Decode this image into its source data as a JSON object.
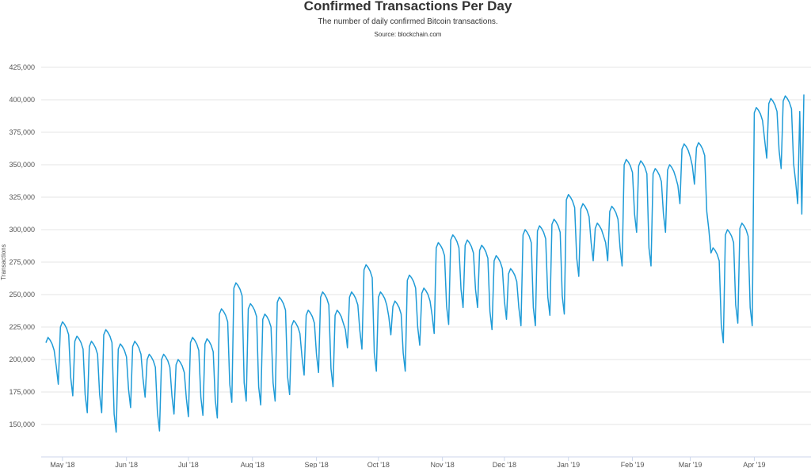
{
  "chart_data": {
    "type": "line",
    "title": "Confirmed Transactions Per Day",
    "subtitle": "The number of daily confirmed Bitcoin transactions.",
    "source": "Source: blockchain.com",
    "xlabel": "",
    "ylabel": "Transactions",
    "ylim": [
      125000,
      425000
    ],
    "grid": true,
    "line_color": "#1f9bd7",
    "start_date": "2018-04-23",
    "y_ticks": [
      {
        "value": 150000,
        "label": "150,000"
      },
      {
        "value": 175000,
        "label": "175,000"
      },
      {
        "value": 200000,
        "label": "200,000"
      },
      {
        "value": 225000,
        "label": "225,000"
      },
      {
        "value": 250000,
        "label": "250,000"
      },
      {
        "value": 275000,
        "label": "275,000"
      },
      {
        "value": 300000,
        "label": "300,000"
      },
      {
        "value": 325000,
        "label": "325,000"
      },
      {
        "value": 350000,
        "label": "350,000"
      },
      {
        "value": 375000,
        "label": "375,000"
      },
      {
        "value": 400000,
        "label": "400,000"
      },
      {
        "value": 425000,
        "label": "425,000"
      }
    ],
    "x_ticks": [
      {
        "day": 8,
        "label": "May '18"
      },
      {
        "day": 39,
        "label": "Jun '18"
      },
      {
        "day": 69,
        "label": "Jul '18"
      },
      {
        "day": 100,
        "label": "Aug '18"
      },
      {
        "day": 131,
        "label": "Sep '18"
      },
      {
        "day": 161,
        "label": "Oct '18"
      },
      {
        "day": 192,
        "label": "Nov '18"
      },
      {
        "day": 222,
        "label": "Dec '18"
      },
      {
        "day": 253,
        "label": "Jan '19"
      },
      {
        "day": 284,
        "label": "Feb '19"
      },
      {
        "day": 312,
        "label": "Mar '19"
      },
      {
        "day": 343,
        "label": "Apr '19"
      }
    ],
    "series": [
      {
        "name": "Transactions",
        "values": [
          213000,
          217000,
          215000,
          212000,
          207000,
          195000,
          181000,
          225000,
          229000,
          227000,
          224000,
          219000,
          186000,
          172000,
          214000,
          218000,
          216000,
          213000,
          208000,
          173000,
          159000,
          210000,
          214000,
          212000,
          209000,
          204000,
          173000,
          159000,
          219000,
          223000,
          221000,
          218000,
          213000,
          158000,
          144000,
          208000,
          212000,
          210000,
          207000,
          202000,
          177000,
          163000,
          210000,
          214000,
          212000,
          209000,
          204000,
          185000,
          171000,
          200000,
          204000,
          202000,
          199000,
          194000,
          159000,
          145000,
          200000,
          204000,
          202000,
          199000,
          194000,
          172000,
          158000,
          196000,
          200000,
          198000,
          195000,
          190000,
          170000,
          156000,
          213000,
          217000,
          215000,
          212000,
          207000,
          171000,
          157000,
          212000,
          216000,
          214000,
          211000,
          206000,
          169000,
          155000,
          235000,
          239000,
          237000,
          234000,
          229000,
          181000,
          167000,
          255000,
          259000,
          257000,
          254000,
          249000,
          182000,
          168000,
          239000,
          243000,
          241000,
          238000,
          233000,
          179000,
          165000,
          231000,
          235000,
          233000,
          230000,
          225000,
          182000,
          168000,
          244000,
          248000,
          246000,
          243000,
          238000,
          187000,
          173000,
          226000,
          230000,
          228000,
          225000,
          220000,
          202000,
          188000,
          234000,
          238000,
          236000,
          233000,
          228000,
          204000,
          190000,
          248000,
          252000,
          250000,
          247000,
          242000,
          193000,
          179000,
          234000,
          238000,
          236000,
          233000,
          228000,
          223000,
          209000,
          248000,
          252000,
          250000,
          247000,
          242000,
          222000,
          208000,
          269000,
          273000,
          271000,
          268000,
          263000,
          205000,
          191000,
          248000,
          252000,
          250000,
          247000,
          242000,
          233000,
          219000,
          241000,
          245000,
          243000,
          240000,
          235000,
          205000,
          191000,
          261000,
          265000,
          263000,
          260000,
          255000,
          225000,
          211000,
          251000,
          255000,
          253000,
          250000,
          245000,
          234000,
          220000,
          286000,
          290000,
          288000,
          285000,
          280000,
          241000,
          227000,
          292000,
          296000,
          294000,
          291000,
          286000,
          254000,
          240000,
          288000,
          292000,
          290000,
          287000,
          282000,
          254000,
          240000,
          284000,
          288000,
          286000,
          283000,
          278000,
          237000,
          223000,
          276000,
          280000,
          278000,
          275000,
          270000,
          245000,
          231000,
          266000,
          270000,
          268000,
          265000,
          260000,
          240000,
          226000,
          296000,
          300000,
          298000,
          295000,
          290000,
          240000,
          226000,
          299000,
          303000,
          301000,
          298000,
          293000,
          248000,
          234000,
          304000,
          308000,
          306000,
          303000,
          298000,
          249000,
          235000,
          323000,
          327000,
          325000,
          322000,
          317000,
          278000,
          264000,
          316000,
          320000,
          318000,
          315000,
          310000,
          290000,
          276000,
          301000,
          305000,
          303000,
          300000,
          295000,
          290000,
          276000,
          314000,
          318000,
          316000,
          313000,
          308000,
          286000,
          272000,
          350000,
          354000,
          352000,
          349000,
          344000,
          312000,
          298000,
          349000,
          353000,
          351000,
          348000,
          343000,
          286000,
          272000,
          343000,
          347000,
          345000,
          342000,
          337000,
          312000,
          298000,
          346000,
          350000,
          348000,
          345000,
          340000,
          334000,
          320000,
          362000,
          366000,
          364000,
          361000,
          356000,
          349000,
          335000,
          363000,
          367000,
          365000,
          362000,
          357000,
          314000,
          300000,
          282000,
          286000,
          284000,
          281000,
          276000,
          227000,
          213000,
          296000,
          300000,
          298000,
          295000,
          290000,
          242000,
          228000,
          301000,
          305000,
          303000,
          300000,
          295000,
          240000,
          226000,
          390000,
          394000,
          392000,
          389000,
          384000,
          369000,
          355000,
          397000,
          401000,
          399000,
          396000,
          391000,
          361000,
          347000,
          399000,
          403000,
          401000,
          398000,
          393000,
          351000,
          337000,
          320000,
          391000,
          312000,
          404000
        ]
      }
    ]
  }
}
